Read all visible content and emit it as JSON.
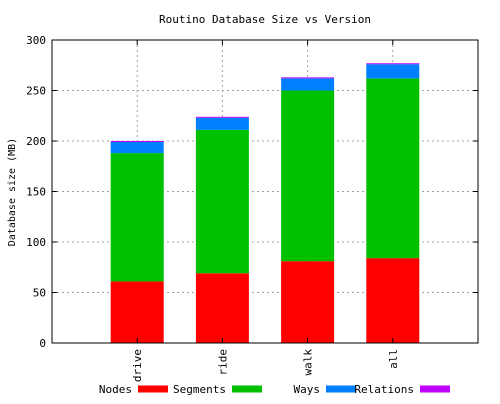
{
  "chart_data": {
    "type": "bar",
    "stacked": true,
    "title": "Routino Database Size vs Version",
    "xlabel": "",
    "ylabel": "Database size (MB)",
    "ylim": [
      0,
      300
    ],
    "yticks": [
      0,
      50,
      100,
      150,
      200,
      250,
      300
    ],
    "grid": true,
    "legend_position": "bottom",
    "categories": [
      "drive",
      "ride",
      "walk",
      "all"
    ],
    "series": [
      {
        "name": "Nodes",
        "color": "#ff0000",
        "values": [
          61,
          69,
          81,
          84
        ]
      },
      {
        "name": "Segments",
        "color": "#00c000",
        "values": [
          127,
          142,
          169,
          178
        ]
      },
      {
        "name": "Ways",
        "color": "#0080ff",
        "values": [
          11,
          12,
          12,
          14
        ]
      },
      {
        "name": "Relations",
        "color": "#c000ff",
        "values": [
          1,
          1,
          1,
          1
        ]
      }
    ]
  }
}
